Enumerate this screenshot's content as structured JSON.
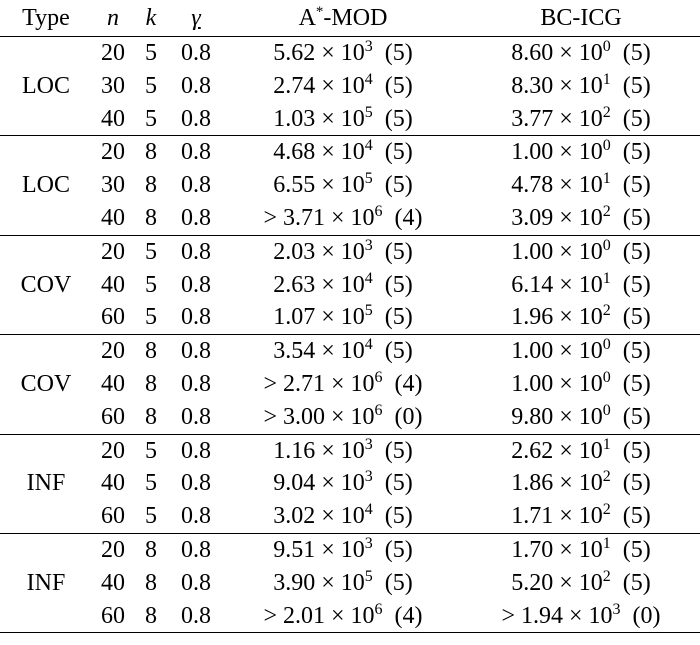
{
  "headers": {
    "type": "Type",
    "n": "n",
    "k": "k",
    "gamma": "γ",
    "a_base": "A",
    "a_sup": "*",
    "a_rest": "-MOD",
    "b": "BC-ICG"
  },
  "groups": [
    {
      "type": "LOC",
      "rows": [
        {
          "n": "20",
          "k": "5",
          "g": "0.8",
          "a_pre": "",
          "a_m": "5.62",
          "a_e": "3",
          "a_c": "(5)",
          "b_pre": "",
          "b_m": "8.60",
          "b_e": "0",
          "b_c": "(5)"
        },
        {
          "n": "30",
          "k": "5",
          "g": "0.8",
          "a_pre": "",
          "a_m": "2.74",
          "a_e": "4",
          "a_c": "(5)",
          "b_pre": "",
          "b_m": "8.30",
          "b_e": "1",
          "b_c": "(5)"
        },
        {
          "n": "40",
          "k": "5",
          "g": "0.8",
          "a_pre": "",
          "a_m": "1.03",
          "a_e": "5",
          "a_c": "(5)",
          "b_pre": "",
          "b_m": "3.77",
          "b_e": "2",
          "b_c": "(5)"
        }
      ]
    },
    {
      "type": "LOC",
      "rows": [
        {
          "n": "20",
          "k": "8",
          "g": "0.8",
          "a_pre": "",
          "a_m": "4.68",
          "a_e": "4",
          "a_c": "(5)",
          "b_pre": "",
          "b_m": "1.00",
          "b_e": "0",
          "b_c": "(5)"
        },
        {
          "n": "30",
          "k": "8",
          "g": "0.8",
          "a_pre": "",
          "a_m": "6.55",
          "a_e": "5",
          "a_c": "(5)",
          "b_pre": "",
          "b_m": "4.78",
          "b_e": "1",
          "b_c": "(5)"
        },
        {
          "n": "40",
          "k": "8",
          "g": "0.8",
          "a_pre": ">",
          "a_m": "3.71",
          "a_e": "6",
          "a_c": "(4)",
          "b_pre": "",
          "b_m": "3.09",
          "b_e": "2",
          "b_c": "(5)"
        }
      ]
    },
    {
      "type": "COV",
      "rows": [
        {
          "n": "20",
          "k": "5",
          "g": "0.8",
          "a_pre": "",
          "a_m": "2.03",
          "a_e": "3",
          "a_c": "(5)",
          "b_pre": "",
          "b_m": "1.00",
          "b_e": "0",
          "b_c": "(5)"
        },
        {
          "n": "40",
          "k": "5",
          "g": "0.8",
          "a_pre": "",
          "a_m": "2.63",
          "a_e": "4",
          "a_c": "(5)",
          "b_pre": "",
          "b_m": "6.14",
          "b_e": "1",
          "b_c": "(5)"
        },
        {
          "n": "60",
          "k": "5",
          "g": "0.8",
          "a_pre": "",
          "a_m": "1.07",
          "a_e": "5",
          "a_c": "(5)",
          "b_pre": "",
          "b_m": "1.96",
          "b_e": "2",
          "b_c": "(5)"
        }
      ]
    },
    {
      "type": "COV",
      "rows": [
        {
          "n": "20",
          "k": "8",
          "g": "0.8",
          "a_pre": "",
          "a_m": "3.54",
          "a_e": "4",
          "a_c": "(5)",
          "b_pre": "",
          "b_m": "1.00",
          "b_e": "0",
          "b_c": "(5)"
        },
        {
          "n": "40",
          "k": "8",
          "g": "0.8",
          "a_pre": ">",
          "a_m": "2.71",
          "a_e": "6",
          "a_c": "(4)",
          "b_pre": "",
          "b_m": "1.00",
          "b_e": "0",
          "b_c": "(5)"
        },
        {
          "n": "60",
          "k": "8",
          "g": "0.8",
          "a_pre": ">",
          "a_m": "3.00",
          "a_e": "6",
          "a_c": "(0)",
          "b_pre": "",
          "b_m": "9.80",
          "b_e": "0",
          "b_c": "(5)"
        }
      ]
    },
    {
      "type": "INF",
      "rows": [
        {
          "n": "20",
          "k": "5",
          "g": "0.8",
          "a_pre": "",
          "a_m": "1.16",
          "a_e": "3",
          "a_c": "(5)",
          "b_pre": "",
          "b_m": "2.62",
          "b_e": "1",
          "b_c": "(5)"
        },
        {
          "n": "40",
          "k": "5",
          "g": "0.8",
          "a_pre": "",
          "a_m": "9.04",
          "a_e": "3",
          "a_c": "(5)",
          "b_pre": "",
          "b_m": "1.86",
          "b_e": "2",
          "b_c": "(5)"
        },
        {
          "n": "60",
          "k": "5",
          "g": "0.8",
          "a_pre": "",
          "a_m": "3.02",
          "a_e": "4",
          "a_c": "(5)",
          "b_pre": "",
          "b_m": "1.71",
          "b_e": "2",
          "b_c": "(5)"
        }
      ]
    },
    {
      "type": "INF",
      "rows": [
        {
          "n": "20",
          "k": "8",
          "g": "0.8",
          "a_pre": "",
          "a_m": "9.51",
          "a_e": "3",
          "a_c": "(5)",
          "b_pre": "",
          "b_m": "1.70",
          "b_e": "1",
          "b_c": "(5)"
        },
        {
          "n": "40",
          "k": "8",
          "g": "0.8",
          "a_pre": "",
          "a_m": "3.90",
          "a_e": "5",
          "a_c": "(5)",
          "b_pre": "",
          "b_m": "5.20",
          "b_e": "2",
          "b_c": "(5)"
        },
        {
          "n": "60",
          "k": "8",
          "g": "0.8",
          "a_pre": ">",
          "a_m": "2.01",
          "a_e": "6",
          "a_c": "(4)",
          "b_pre": ">",
          "b_m": "1.94",
          "b_e": "3",
          "b_c": "(0)"
        }
      ]
    }
  ]
}
